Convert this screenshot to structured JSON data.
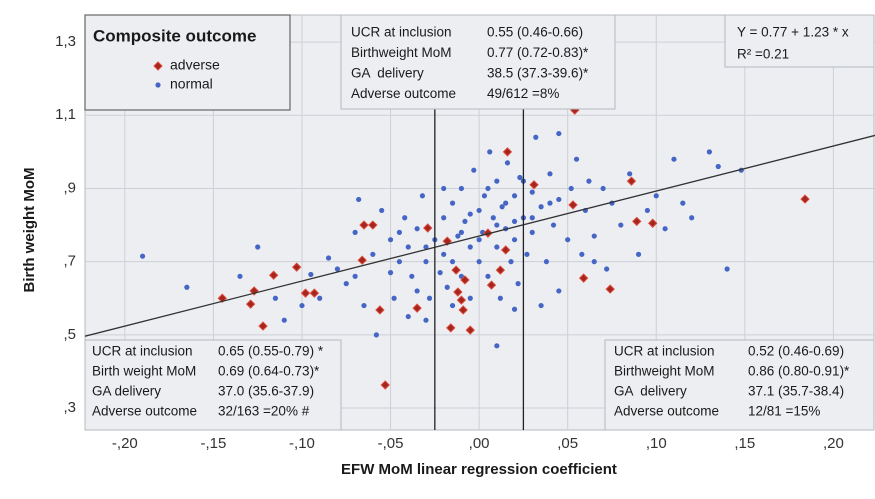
{
  "chart_data": {
    "type": "scatter",
    "x_label": "EFW MoM linear regression coefficient",
    "y_label": "Birth weight MoM",
    "xlim": [
      -0.2225,
      0.2235
    ],
    "ylim": [
      0.24,
      1.374
    ],
    "xticks": [
      {
        "value": -0.2,
        "label": "-,20"
      },
      {
        "value": -0.15,
        "label": "-,15"
      },
      {
        "value": -0.1,
        "label": "-,10"
      },
      {
        "value": -0.05,
        "label": "-,05"
      },
      {
        "value": 0,
        "label": ",00"
      },
      {
        "value": 0.05,
        "label": ",05"
      },
      {
        "value": 0.1,
        "label": ",10"
      },
      {
        "value": 0.15,
        "label": ",15"
      },
      {
        "value": 0.2,
        "label": ",20"
      }
    ],
    "yticks": [
      {
        "value": 0.3,
        "label": ",3"
      },
      {
        "value": 0.5,
        "label": ",5"
      },
      {
        "value": 0.7,
        "label": ",7"
      },
      {
        "value": 0.9,
        "label": ",9"
      },
      {
        "value": 1.1,
        "label": "1,1"
      },
      {
        "value": 1.3,
        "label": "1,3"
      }
    ],
    "grid": true,
    "legend": {
      "title": "Composite outcome",
      "position": "top-left"
    },
    "series": [
      {
        "name": "adverse",
        "color": "#a3261f",
        "marker": "diamond",
        "x": [
          0.054,
          0.016,
          0.031,
          0.053,
          0.086,
          0.089,
          0.098,
          0.184,
          0.059,
          0.074,
          -0.065,
          -0.06,
          -0.029,
          -0.066,
          -0.103,
          -0.116,
          -0.127,
          -0.145,
          -0.129,
          -0.122,
          -0.098,
          -0.093,
          -0.018,
          -0.013,
          -0.008,
          -0.012,
          -0.01,
          -0.009,
          -0.035,
          -0.056,
          -0.016,
          -0.005,
          0.007,
          0.012,
          0.015,
          -0.053,
          0.005
        ],
        "values": [
          1.114,
          1.0,
          0.91,
          0.855,
          0.92,
          0.81,
          0.805,
          0.871,
          0.655,
          0.625,
          0.8,
          0.8,
          0.792,
          0.704,
          0.685,
          0.663,
          0.62,
          0.6,
          0.584,
          0.524,
          0.614,
          0.614,
          0.756,
          0.677,
          0.65,
          0.617,
          0.595,
          0.568,
          0.573,
          0.568,
          0.519,
          0.513,
          0.636,
          0.677,
          0.732,
          0.363,
          0.778
        ]
      },
      {
        "name": "normal",
        "color": "#4566c4",
        "marker": "circle",
        "x": [
          -0.19,
          -0.165,
          -0.135,
          -0.125,
          -0.115,
          -0.11,
          -0.1,
          -0.095,
          -0.09,
          -0.085,
          -0.08,
          -0.075,
          -0.07,
          -0.07,
          -0.068,
          -0.065,
          -0.06,
          -0.058,
          -0.055,
          -0.05,
          -0.05,
          -0.048,
          -0.045,
          -0.042,
          -0.04,
          -0.04,
          -0.038,
          -0.035,
          -0.035,
          -0.032,
          -0.03,
          -0.03,
          -0.028,
          -0.025,
          -0.022,
          -0.02,
          -0.02,
          -0.018,
          -0.015,
          -0.015,
          -0.012,
          -0.01,
          -0.01,
          -0.008,
          -0.005,
          -0.005,
          -0.003,
          0,
          0,
          0.002,
          0.003,
          0.005,
          0.006,
          0.008,
          0.01,
          0.01,
          0.012,
          0.013,
          0.015,
          0.016,
          0.018,
          0.02,
          0.02,
          0.022,
          0.023,
          0.025,
          0.027,
          0.03,
          0.03,
          0.032,
          0.035,
          0.038,
          0.04,
          0.042,
          0.045,
          0.045,
          0.05,
          0.052,
          0.055,
          0.058,
          0.06,
          0.062,
          0.065,
          0.07,
          0.072,
          0.075,
          0.08,
          0.085,
          0.09,
          0.095,
          0.1,
          0.105,
          0.11,
          0.115,
          0.12,
          0.13,
          0.135,
          0.14,
          0.148,
          0.02,
          0.01,
          0.035,
          -0.005,
          0.005,
          -0.02,
          0.015,
          0.025,
          -0.01,
          0.01,
          0.03,
          -0.03,
          0,
          0.04,
          -0.045,
          0.02,
          0.045,
          -0.015,
          0.065
        ],
        "values": [
          0.715,
          0.63,
          0.66,
          0.74,
          0.6,
          0.54,
          0.58,
          0.665,
          0.6,
          0.71,
          0.68,
          0.64,
          0.78,
          0.66,
          0.87,
          0.58,
          0.72,
          0.5,
          0.84,
          0.67,
          0.76,
          0.6,
          0.7,
          0.82,
          0.55,
          0.74,
          0.66,
          0.62,
          0.79,
          0.88,
          0.7,
          0.54,
          0.6,
          0.76,
          0.67,
          0.82,
          0.72,
          0.63,
          0.86,
          0.7,
          0.77,
          0.9,
          0.66,
          0.81,
          0.74,
          0.6,
          0.95,
          0.84,
          0.7,
          0.78,
          0.88,
          0.66,
          1.0,
          0.82,
          0.74,
          0.92,
          0.6,
          0.85,
          0.79,
          0.97,
          0.7,
          0.88,
          0.76,
          0.64,
          0.93,
          0.82,
          0.72,
          0.89,
          0.78,
          1.04,
          0.85,
          0.7,
          0.94,
          0.8,
          0.62,
          0.87,
          0.76,
          0.9,
          0.98,
          0.72,
          0.84,
          0.92,
          0.77,
          0.9,
          0.68,
          0.86,
          0.8,
          0.94,
          0.72,
          0.84,
          0.88,
          0.79,
          0.98,
          0.86,
          0.82,
          1.0,
          0.96,
          0.68,
          0.95,
          0.57,
          0.47,
          0.58,
          0.83,
          0.9,
          0.9,
          0.86,
          0.92,
          0.78,
          0.8,
          0.82,
          0.74,
          0.76,
          0.86,
          0.78,
          0.81,
          1.05,
          0.58,
          0.7
        ]
      }
    ],
    "regression": {
      "intercept": 0.77,
      "slope": 1.23,
      "color": "#333333"
    },
    "reference_lines_x": [
      -0.025,
      0.025
    ],
    "annotations": [
      {
        "position": "top-center",
        "rows": [
          [
            "UCR at inclusion",
            "0.55 (0.46-0.66)"
          ],
          [
            "Birthweight MoM",
            "0.77 (0.72-0.83)*"
          ],
          [
            "GA  delivery",
            "38.5 (37.3-39.6)*"
          ],
          [
            "Adverse outcome",
            "49/612 =8%"
          ]
        ]
      },
      {
        "position": "top-right",
        "rows": [
          [
            "Y = 0.77 + 1.23 * x"
          ],
          [
            "R² =0.21"
          ]
        ]
      },
      {
        "position": "bottom-left",
        "rows": [
          [
            "UCR at inclusion",
            "0.65 (0.55-0.79) *"
          ],
          [
            "Birth weight MoM",
            "0.69 (0.64-0.73)*"
          ],
          [
            "GA delivery",
            "37.0 (35.6-37.9)"
          ],
          [
            "Adverse outcome",
            "32/163 =20% #"
          ]
        ]
      },
      {
        "position": "bottom-right",
        "rows": [
          [
            "UCR at inclusion",
            "0.52 (0.46-0.69)"
          ],
          [
            "Birthweight MoM",
            "0.86 (0.80-0.91)*"
          ],
          [
            "GA  delivery",
            "37.1 (35.7-38.4)"
          ],
          [
            "Adverse outcome",
            "12/81 =15%"
          ]
        ]
      }
    ]
  }
}
